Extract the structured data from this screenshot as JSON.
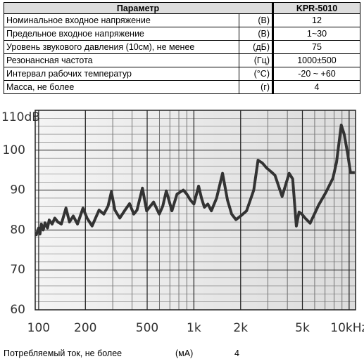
{
  "table": {
    "header": [
      "Параметр",
      "KPR-5010"
    ],
    "rows": [
      [
        "Номинальное входное напряжение",
        "(В)",
        "12"
      ],
      [
        "Предельное входное напряжение",
        "(В)",
        "1~30"
      ],
      [
        "Уровень звукового давления (10см), не менее",
        "(дБ)",
        "75"
      ],
      [
        "Резонансная частота",
        "(Гц)",
        "1000±500"
      ],
      [
        "Интервал рабочих температур",
        "(°С)",
        "-20 ~ +60"
      ],
      [
        "Масса, не более",
        "(г)",
        "4"
      ]
    ]
  },
  "chart_data": {
    "type": "line",
    "log_x": true,
    "color": "#333333",
    "grid": true,
    "x": [
      96,
      100,
      102,
      104,
      107,
      110,
      114,
      117,
      122,
      127,
      133,
      140,
      150,
      158,
      167,
      178,
      193,
      205,
      221,
      245,
      263,
      280,
      294,
      310,
      333,
      360,
      385,
      410,
      430,
      466,
      496,
      550,
      598,
      630,
      664,
      722,
      778,
      855,
      900,
      950,
      1000,
      1073,
      1120,
      1168,
      1230,
      1296,
      1400,
      1530,
      1645,
      1750,
      1865,
      2000,
      2185,
      2430,
      2590,
      2760,
      2950,
      3165,
      3330,
      3700,
      3950,
      4110,
      4330,
      4570,
      4760,
      4960,
      5200,
      5610,
      6370,
      7100,
      7870,
      8300,
      8900,
      9300,
      9800,
      10200,
      10870
    ],
    "series": [
      {
        "color": "#333333",
        "values": [
          78.5,
          80.5,
          79,
          81.5,
          80,
          81.8,
          80.5,
          82.5,
          81.5,
          83,
          82,
          81.5,
          85.5,
          82,
          83.5,
          81.5,
          85.5,
          83,
          81,
          85,
          84,
          86,
          89.6,
          85,
          83,
          85,
          86.6,
          84,
          85,
          90.5,
          84.8,
          87,
          84,
          86,
          89.8,
          84.8,
          89,
          90,
          89,
          87.5,
          86.5,
          91,
          88,
          85.7,
          86.5,
          84.8,
          88,
          94.2,
          87.5,
          84,
          82.6,
          83.5,
          84.8,
          90,
          97.5,
          96.8,
          95.5,
          94.5,
          93.7,
          88.4,
          92,
          94.2,
          92.8,
          81,
          84.5,
          84,
          83,
          81.7,
          86.3,
          89.5,
          93,
          97,
          106.3,
          104,
          99,
          94.4,
          94.4
        ]
      }
    ],
    "xlim": [
      95,
      11000
    ],
    "ylim": [
      60,
      110
    ],
    "xticks": [
      100,
      200,
      500,
      {
        "value": 1000,
        "label": "1k"
      },
      {
        "value": 2000,
        "label": "2k"
      },
      {
        "value": 5000,
        "label": "5k"
      },
      {
        "value": 10000,
        "label": "10kHz"
      }
    ],
    "yticks": [
      60,
      70,
      80,
      90,
      100,
      {
        "value": 110,
        "label": "110dB"
      }
    ],
    "xgrid": [
      100,
      200,
      300,
      400,
      500,
      600,
      700,
      800,
      900,
      1000,
      2000,
      3000,
      4000,
      5000,
      6000,
      7000,
      8000,
      9000,
      10000
    ],
    "ygrid": [
      62,
      64,
      66,
      68,
      72,
      74,
      76,
      78,
      82,
      84,
      86,
      88,
      92,
      94,
      96,
      98,
      102,
      104,
      106,
      108
    ]
  },
  "footer": [
    "Потребляемый ток, не более",
    "(мА)",
    "4"
  ]
}
